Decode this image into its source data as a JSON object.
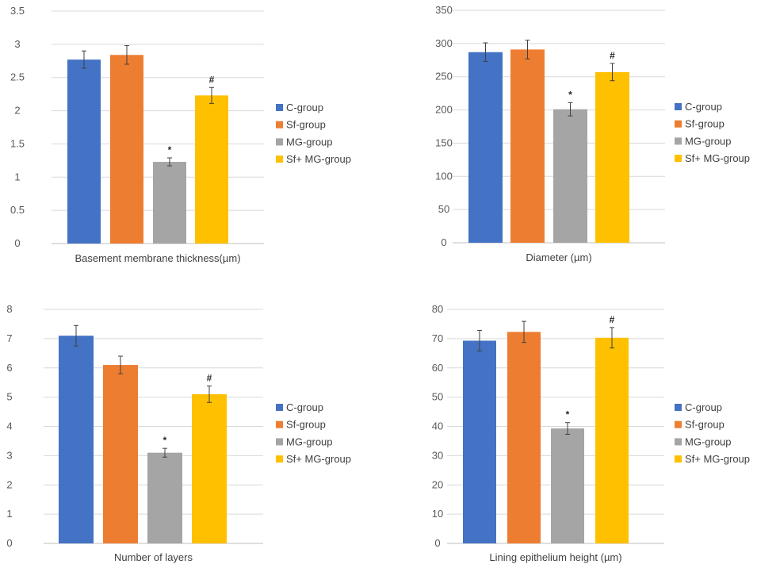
{
  "legend": {
    "position": "right",
    "entries": [
      {
        "label": "C-group",
        "color": "#4472c4"
      },
      {
        "label": "Sf-group",
        "color": "#ed7d31"
      },
      {
        "label": "MG-group",
        "color": "#a5a5a5"
      },
      {
        "label": "Sf+ MG-group",
        "color": "#ffc000"
      }
    ]
  },
  "chart_data": [
    {
      "type": "bar",
      "xlabel": "Basement membrane thickness(µm)",
      "ylabel": "",
      "ylim": [
        0,
        3.5
      ],
      "yticks": [
        "0",
        "0.5",
        "1",
        "1.5",
        "2",
        "2.5",
        "3",
        "3.5"
      ],
      "grid": true,
      "categories": [
        "C-group",
        "Sf-group",
        "MG-group",
        "Sf+ MG-group"
      ],
      "values": [
        2.77,
        2.84,
        1.23,
        2.23
      ],
      "errors": [
        0.13,
        0.14,
        0.06,
        0.12
      ],
      "annotations": [
        "",
        "",
        "*",
        "#"
      ]
    },
    {
      "type": "bar",
      "xlabel": "Diameter (µm)",
      "ylabel": "",
      "ylim": [
        0,
        350
      ],
      "yticks": [
        "0",
        "50",
        "100",
        "150",
        "200",
        "250",
        "300",
        "350"
      ],
      "grid": true,
      "categories": [
        "C-group",
        "Sf-group",
        "MG-group",
        "Sf+ MG-group"
      ],
      "values": [
        287,
        291,
        201,
        257
      ],
      "errors": [
        14,
        14,
        10,
        13
      ],
      "annotations": [
        "",
        "",
        "*",
        "#"
      ]
    },
    {
      "type": "bar",
      "xlabel": "Number of  layers",
      "ylabel": "",
      "ylim": [
        0,
        8
      ],
      "yticks": [
        "0",
        "1",
        "2",
        "3",
        "4",
        "5",
        "6",
        "7",
        "8"
      ],
      "grid": true,
      "categories": [
        "C-group",
        "Sf-group",
        "MG-group",
        "Sf+ MG-group"
      ],
      "values": [
        7.1,
        6.1,
        3.1,
        5.1
      ],
      "errors": [
        0.35,
        0.3,
        0.15,
        0.28
      ],
      "annotations": [
        "",
        "",
        "*",
        "#"
      ]
    },
    {
      "type": "bar",
      "xlabel": "Lining epithelium height (µm)",
      "ylabel": "",
      "ylim": [
        0,
        80
      ],
      "yticks": [
        "0",
        "10",
        "20",
        "30",
        "40",
        "50",
        "60",
        "70",
        "80"
      ],
      "grid": true,
      "categories": [
        "C-group",
        "Sf-group",
        "MG-group",
        "Sf+ MG-group"
      ],
      "values": [
        69.3,
        72.3,
        39.3,
        70.3
      ],
      "errors": [
        3.5,
        3.6,
        2.0,
        3.5
      ],
      "annotations": [
        "",
        "",
        "*",
        "#"
      ]
    }
  ]
}
